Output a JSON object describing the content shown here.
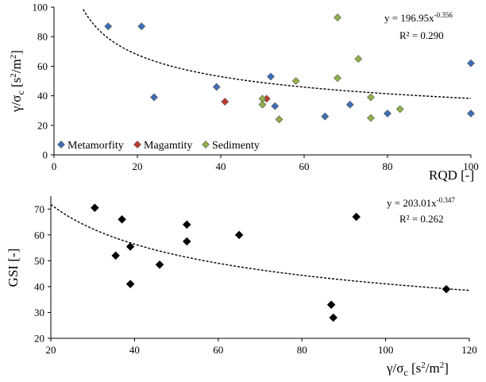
{
  "chart_data": [
    {
      "type": "scatter",
      "xlabel": "RQD [-]",
      "ylabel": "γ/σc [s²/m²]",
      "xlim": [
        0,
        100
      ],
      "ylim": [
        0,
        100
      ],
      "xticks": [
        0,
        20,
        40,
        60,
        80,
        100
      ],
      "yticks": [
        0,
        20,
        40,
        60,
        80,
        100
      ],
      "legend_position": "bottom-left",
      "series": [
        {
          "name": "Metamorfity",
          "color": "#3d6db5",
          "points": [
            [
              13,
              87
            ],
            [
              21,
              87
            ],
            [
              24,
              39
            ],
            [
              39,
              46
            ],
            [
              52,
              53
            ],
            [
              53,
              33
            ],
            [
              65,
              26
            ],
            [
              71,
              34
            ],
            [
              80,
              28
            ],
            [
              100,
              62
            ],
            [
              100,
              28
            ]
          ]
        },
        {
          "name": "Magamtity",
          "color": "#c0392b",
          "points": [
            [
              41,
              36
            ],
            [
              51,
              38
            ]
          ]
        },
        {
          "name": "Sedimenty",
          "color": "#8fb04a",
          "points": [
            [
              50,
              38
            ],
            [
              50,
              34
            ],
            [
              54,
              24
            ],
            [
              58,
              50
            ],
            [
              68,
              93
            ],
            [
              68,
              52
            ],
            [
              73,
              65
            ],
            [
              76,
              39
            ],
            [
              76,
              25
            ],
            [
              83,
              31
            ]
          ]
        }
      ],
      "trendline": {
        "a": 196.95,
        "b": -0.356
      },
      "equation_prefix": "y = 196.95x",
      "equation_exponent": "-0.356",
      "r2_text": "R² = 0.290"
    },
    {
      "type": "scatter",
      "xlabel": "γ/σc [s²/m²]",
      "ylabel": "GSI [-]",
      "xlim": [
        20,
        120
      ],
      "ylim": [
        20,
        75
      ],
      "xticks": [
        20,
        40,
        60,
        80,
        100,
        120
      ],
      "yticks": [
        20,
        30,
        40,
        50,
        60,
        70
      ],
      "series": [
        {
          "color": "#000000",
          "points": [
            [
              30.5,
              70.5
            ],
            [
              37,
              66
            ],
            [
              35.5,
              52
            ],
            [
              39,
              55.5
            ],
            [
              39,
              41
            ],
            [
              46,
              48.5
            ],
            [
              52.5,
              64
            ],
            [
              52.5,
              57.5
            ],
            [
              65,
              60
            ],
            [
              87,
              33
            ],
            [
              87.5,
              28
            ],
            [
              93,
              67
            ],
            [
              114.5,
              39
            ]
          ]
        }
      ],
      "trendline": {
        "a": 203.01,
        "b": -0.347
      },
      "equation_prefix": "y = 203.01x",
      "equation_exponent": "-0.347",
      "r2_text": "R² = 0.262"
    }
  ]
}
